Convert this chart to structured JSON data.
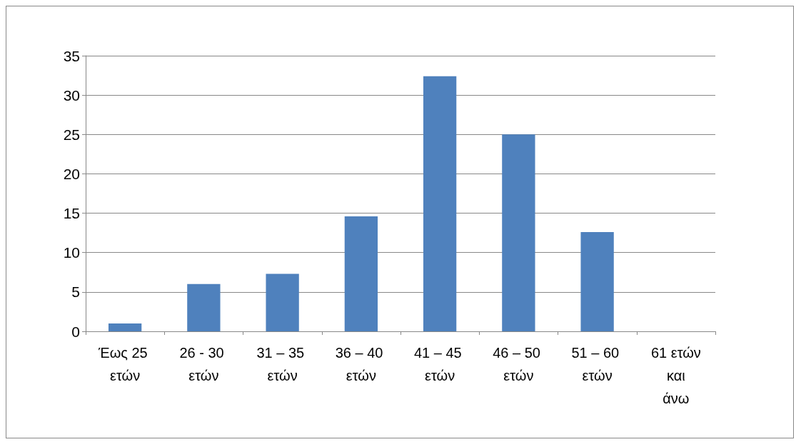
{
  "chart_data": {
    "type": "bar",
    "categories": [
      "Έως 25 ετών",
      "26 - 30 ετών",
      "31 – 35 ετών",
      "36 – 40 ετών",
      "41 – 45 ετών",
      "46 – 50 ετών",
      "51 – 60 ετών",
      "61 ετών και άνω"
    ],
    "values": [
      1,
      6,
      7.3,
      14.6,
      32.4,
      25,
      12.6,
      0
    ],
    "color": "#4f81bd",
    "ylim": [
      0,
      35
    ],
    "yticks": [
      0,
      5,
      10,
      15,
      20,
      25,
      30,
      35
    ],
    "grid": "y"
  }
}
